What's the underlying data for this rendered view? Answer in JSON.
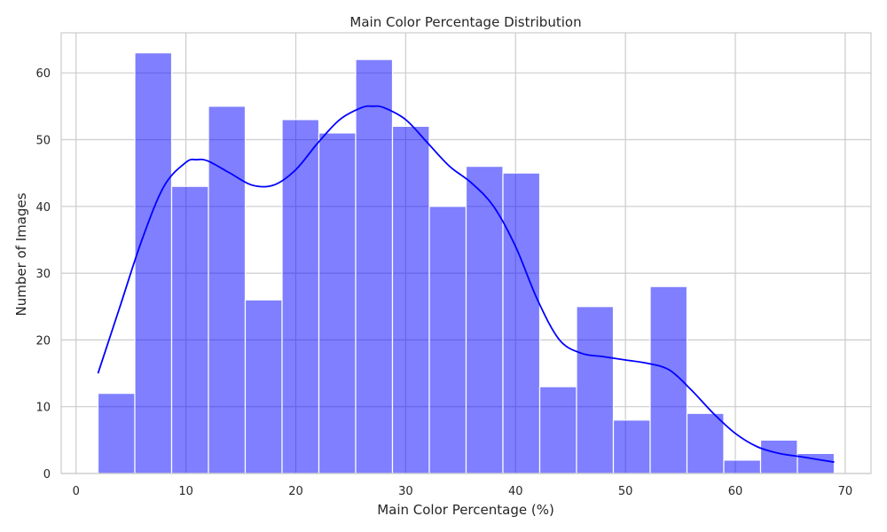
{
  "chart_data": {
    "type": "bar",
    "title": "Main Color Percentage Distribution",
    "xlabel": "Main Color Percentage (%)",
    "ylabel": "Number of Images",
    "xlim": [
      -1.35,
      72.35
    ],
    "ylim": [
      0,
      66
    ],
    "xticks": [
      0,
      10,
      20,
      30,
      40,
      50,
      60,
      70
    ],
    "yticks": [
      0,
      10,
      20,
      30,
      40,
      50,
      60
    ],
    "grid": true,
    "bar_color": "#0000ff",
    "bar_opacity": 0.5,
    "kde_color": "#0000ff",
    "bins": {
      "start": 2.0,
      "width": 3.35,
      "counts": [
        12,
        63,
        43,
        55,
        26,
        53,
        51,
        62,
        52,
        40,
        46,
        45,
        13,
        25,
        8,
        28,
        9,
        2,
        5,
        3
      ]
    },
    "kde": {
      "x": [
        2.0,
        4.0,
        6.0,
        8.0,
        10.0,
        11.0,
        12.0,
        14.0,
        16.0,
        18.0,
        20.0,
        22.0,
        24.0,
        26.0,
        27.0,
        28.0,
        30.0,
        32.0,
        34.0,
        36.0,
        38.0,
        40.0,
        42.0,
        44.0,
        46.0,
        48.0,
        50.0,
        52.0,
        54.0,
        56.0,
        58.0,
        60.0,
        62.0,
        64.0,
        66.0,
        69.0
      ],
      "y": [
        15.0,
        25.0,
        35.0,
        43.0,
        46.6,
        47.0,
        46.8,
        45.0,
        43.2,
        43.2,
        45.5,
        49.5,
        53.0,
        54.8,
        55.0,
        54.8,
        53.0,
        49.5,
        46.0,
        43.5,
        40.0,
        34.0,
        26.0,
        20.0,
        18.0,
        17.5,
        17.0,
        16.5,
        15.5,
        12.5,
        9.0,
        6.0,
        4.0,
        3.0,
        2.5,
        1.7
      ]
    }
  }
}
